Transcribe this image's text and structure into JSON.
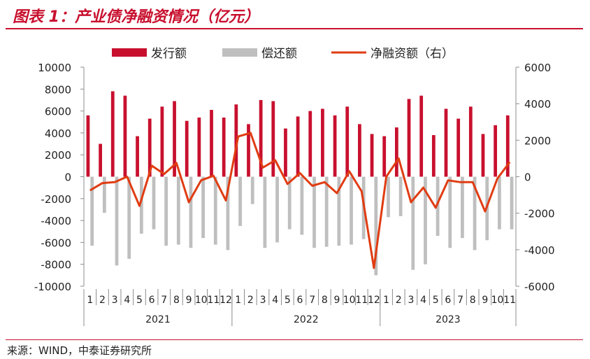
{
  "figure_title": "图表 1：产业债净融资情况（亿元）",
  "source": "来源：WIND，中泰证券研究所",
  "colors": {
    "issue": "#c8102e",
    "repay": "#bfbfbf",
    "net": "#e03c12",
    "accent": "#c8102e"
  },
  "chart_data": {
    "type": "bar",
    "title": "",
    "legend": [
      {
        "name": "发行额",
        "kind": "bar",
        "color": "#c8102e"
      },
      {
        "name": "偿还额",
        "kind": "bar",
        "color": "#bfbfbf"
      },
      {
        "name": "净融资额（右）",
        "kind": "line",
        "color": "#e03c12"
      }
    ],
    "legend_position": "top",
    "months": [
      "1",
      "2",
      "3",
      "4",
      "5",
      "6",
      "7",
      "8",
      "9",
      "10",
      "11",
      "12",
      "1",
      "2",
      "3",
      "4",
      "5",
      "6",
      "7",
      "8",
      "9",
      "10",
      "11",
      "12",
      "1",
      "2",
      "3",
      "4",
      "5",
      "6",
      "7",
      "8",
      "9",
      "10",
      "11"
    ],
    "years": [
      {
        "label": "2021",
        "span": 12
      },
      {
        "label": "2022",
        "span": 12
      },
      {
        "label": "2023",
        "span": 11
      }
    ],
    "left_axis": {
      "ylim": [
        -10000,
        10000
      ],
      "ticks": [
        10000,
        8000,
        6000,
        4000,
        2000,
        0,
        -2000,
        -4000,
        -6000,
        -8000,
        -10000
      ]
    },
    "right_axis": {
      "ylim": [
        -6000,
        6000
      ],
      "ticks": [
        6000,
        4000,
        2000,
        0,
        -2000,
        -4000,
        -6000
      ]
    },
    "series": [
      {
        "name": "发行额",
        "axis": "left",
        "values": [
          5600,
          3000,
          7800,
          7400,
          3700,
          5300,
          6400,
          6900,
          5100,
          5400,
          6100,
          5400,
          6600,
          4800,
          7000,
          6900,
          4400,
          5500,
          6000,
          6200,
          5600,
          6400,
          4800,
          3900,
          3700,
          4500,
          7100,
          7400,
          3800,
          6200,
          5300,
          6400,
          3900,
          4700,
          5600
        ]
      },
      {
        "name": "偿还额",
        "axis": "left",
        "values": [
          -6300,
          -3300,
          -8100,
          -7500,
          -5200,
          -4800,
          -6300,
          -6200,
          -6500,
          -5600,
          -6200,
          -6700,
          -4500,
          -2500,
          -6500,
          -6000,
          -4800,
          -5300,
          -6500,
          -6400,
          -6300,
          -6200,
          -5700,
          -9000,
          -3700,
          -3600,
          -8500,
          -8000,
          -5400,
          -6500,
          -5600,
          -6700,
          -5800,
          -4800,
          -4800
        ]
      },
      {
        "name": "净融资额（右）",
        "axis": "right",
        "values": [
          -750,
          -350,
          -300,
          0,
          -1600,
          600,
          150,
          750,
          -1400,
          -200,
          50,
          -1300,
          2200,
          2400,
          500,
          900,
          -400,
          200,
          -500,
          -300,
          -900,
          300,
          -800,
          -5000,
          0,
          1000,
          -1400,
          -600,
          -1700,
          -200,
          -300,
          -300,
          -1900,
          -100,
          800
        ]
      }
    ]
  }
}
